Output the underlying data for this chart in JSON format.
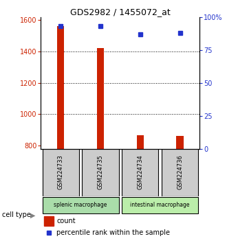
{
  "title": "GDS2982 / 1455072_at",
  "samples": [
    "GSM224733",
    "GSM224735",
    "GSM224734",
    "GSM224736"
  ],
  "counts": [
    1560,
    1420,
    865,
    860
  ],
  "percentiles": [
    93,
    93,
    87,
    88
  ],
  "ylim_left": [
    780,
    1620
  ],
  "ylim_right": [
    0,
    100
  ],
  "yticks_left": [
    800,
    1000,
    1200,
    1400,
    1600
  ],
  "yticks_right": [
    0,
    25,
    50,
    75,
    100
  ],
  "ytick_labels_right": [
    "0",
    "25",
    "50",
    "75",
    "100%"
  ],
  "grid_values": [
    1000,
    1200,
    1400
  ],
  "bar_color": "#cc2200",
  "dot_color": "#2233cc",
  "cell_types": [
    {
      "label": "splenic macrophage",
      "samples": [
        0,
        1
      ],
      "color": "#aaddaa"
    },
    {
      "label": "intestinal macrophage",
      "samples": [
        2,
        3
      ],
      "color": "#bbeeaa"
    }
  ],
  "cell_type_label": "cell type",
  "legend_count_label": "count",
  "legend_pct_label": "percentile rank within the sample",
  "left_axis_color": "#cc2200",
  "right_axis_color": "#2233cc",
  "sample_box_color": "#cccccc",
  "background_color": "#ffffff"
}
